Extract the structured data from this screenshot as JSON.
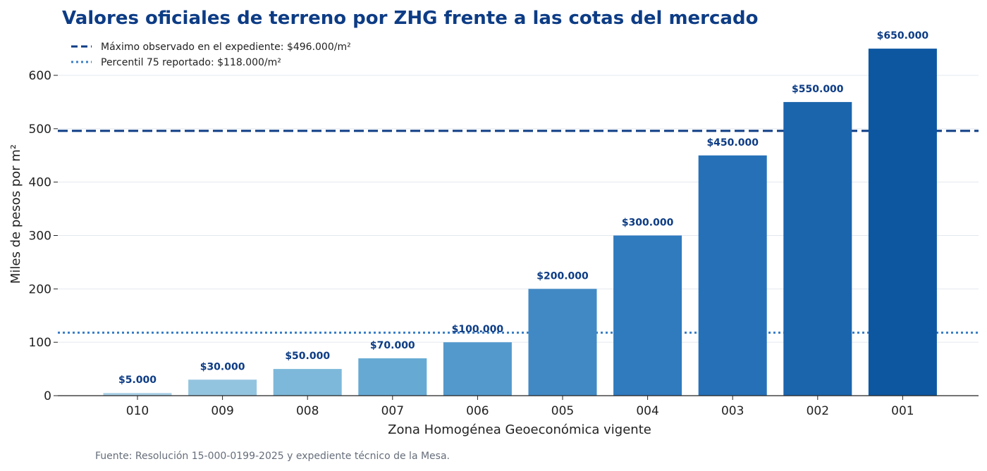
{
  "chart_data": {
    "type": "bar",
    "title": "Valores oficiales de terreno por ZHG frente a las cotas del mercado",
    "xlabel": "Zona Homogénea Geoeconómica vigente",
    "ylabel": "Miles de pesos por m²",
    "categories": [
      "010",
      "009",
      "008",
      "007",
      "006",
      "005",
      "004",
      "003",
      "002",
      "001"
    ],
    "values": [
      5,
      30,
      50,
      70,
      100,
      200,
      300,
      450,
      550,
      650
    ],
    "value_labels": [
      "$5.000",
      "$30.000",
      "$50.000",
      "$70.000",
      "$100.000",
      "$200.000",
      "$300.000",
      "$450.000",
      "$550.000",
      "$650.000"
    ],
    "bar_colors": [
      "#a9cfe5",
      "#93c4df",
      "#7db8da",
      "#66aad4",
      "#5499cc",
      "#4189c5",
      "#307abe",
      "#2670b8",
      "#1b65ad",
      "#0d57a1"
    ],
    "ylim": [
      0,
      670
    ],
    "yticks": [
      0,
      100,
      200,
      300,
      400,
      500,
      600
    ],
    "grid": "horizontal",
    "reference_lines": [
      {
        "label": "Máximo observado en el expediente: $496.000/m²",
        "value": 496,
        "style": "dashed",
        "color": "#0d3c85"
      },
      {
        "label": "Percentil 75 reportado: $118.000/m²",
        "value": 118,
        "style": "dotted",
        "color": "#3a7fc8"
      }
    ],
    "legend_position": "top-left",
    "source": "Fuente: Resolución 15-000-0199-2025 y expediente técnico de la Mesa."
  }
}
